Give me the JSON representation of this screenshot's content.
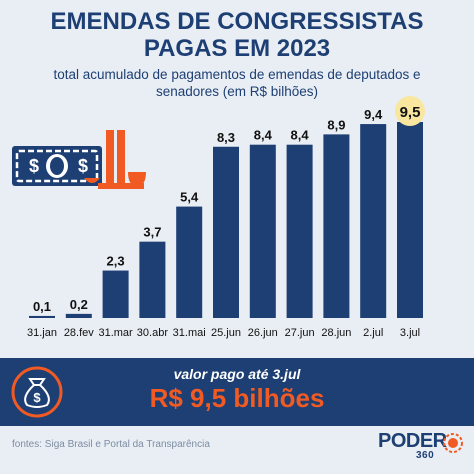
{
  "header": {
    "title_line1": "EMENDAS DE CONGRESSISTAS",
    "title_line2": "PAGAS EM 2023",
    "subtitle_line1": "total acumulado de pagamentos de emendas de deputados e",
    "subtitle_line2": "senadores (em R$ bilhões)"
  },
  "chart_data": {
    "type": "bar",
    "categories": [
      "31.jan",
      "28.fev",
      "31.mar",
      "30.abr",
      "31.mai",
      "25.jun",
      "26.jun",
      "27.jun",
      "28.jun",
      "2.jul",
      "3.jul"
    ],
    "values": [
      0.1,
      0.2,
      2.3,
      3.7,
      5.4,
      8.3,
      8.4,
      8.4,
      8.9,
      9.4,
      9.5
    ],
    "value_labels": [
      "0,1",
      "0,2",
      "2,3",
      "3,7",
      "5,4",
      "8,3",
      "8,4",
      "8,4",
      "8,9",
      "9,4",
      "9,5"
    ],
    "highlight_index": 10,
    "ylim": [
      0,
      9.5
    ],
    "grid": false,
    "colors": {
      "bar": "#1d3f73",
      "highlight": "#f9e7a0",
      "text": "#111111"
    },
    "title": "",
    "xlabel": "",
    "ylabel": ""
  },
  "decoration": {
    "icons": [
      "money-bill-icon",
      "congress-building-icon"
    ],
    "colors": {
      "bill": "#1d3f73",
      "building": "#f15a22"
    }
  },
  "callout": {
    "label": "valor pago até 3.jul",
    "value": "R$ 9,5 bilhões",
    "icon": "money-bag-icon",
    "colors": {
      "background": "#1d3f73",
      "label": "#ffffff",
      "value": "#f15a22"
    }
  },
  "footer": {
    "sources": "fontes: Siga Brasil e Portal da Transparência",
    "brand_name": "PODER",
    "brand_sub": "360"
  }
}
